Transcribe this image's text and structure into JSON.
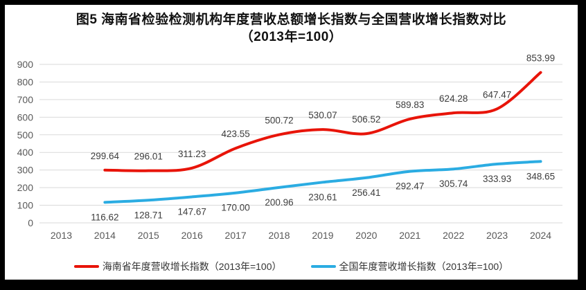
{
  "title": {
    "line1": "图5  海南省检验检测机构年度营收总额增长指数与全国营收增长指数对比",
    "line2": "（2013年=100）"
  },
  "chart_data": {
    "type": "line",
    "x": [
      2013,
      2014,
      2015,
      2016,
      2017,
      2018,
      2019,
      2020,
      2021,
      2022,
      2023,
      2024
    ],
    "series": [
      {
        "key": "hainan",
        "name": "海南省年度营收增长指数（2013年=100）",
        "color": "#e81409",
        "x_start": 2014,
        "values": [
          299.64,
          296.01,
          311.23,
          423.55,
          500.72,
          530.07,
          506.52,
          589.83,
          624.28,
          647.47,
          853.99
        ],
        "labels": [
          "299.64",
          "296.01",
          "311.23",
          "423.55",
          "500.72",
          "530.07",
          "506.52",
          "589.83",
          "624.28",
          "647.47",
          "853.99"
        ],
        "label_position": "above"
      },
      {
        "key": "national",
        "name": "全国年度营收增长指数（2013年=100）",
        "color": "#2bace2",
        "x_start": 2014,
        "values": [
          116.62,
          128.71,
          147.67,
          170.0,
          200.96,
          230.61,
          256.41,
          292.47,
          305.74,
          333.93,
          348.65
        ],
        "labels": [
          "116.62",
          "128.71",
          "147.67",
          "170.00",
          "200.96",
          "230.61",
          "256.41",
          "292.47",
          "305.74",
          "333.93",
          "348.65"
        ],
        "label_position": "below"
      }
    ],
    "ylim": [
      0,
      900
    ],
    "ytick_step": 100,
    "grid": true,
    "grid_color": "#d9d9d9",
    "legend_position": "bottom",
    "data_labels": true,
    "line_width": 4
  }
}
